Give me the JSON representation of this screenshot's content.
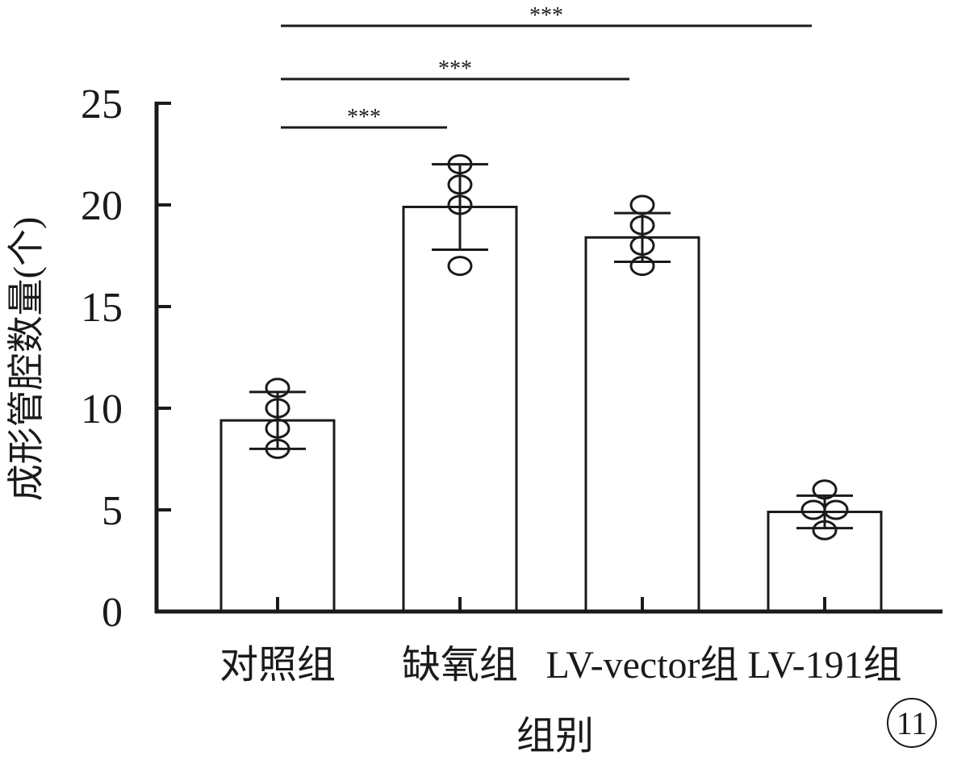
{
  "chart_data": {
    "type": "bar",
    "categories": [
      "对照组",
      "缺氧组",
      "LV-vector组",
      "LV-191组"
    ],
    "values": [
      9.4,
      19.9,
      18.4,
      4.9
    ],
    "errors": [
      1.4,
      2.1,
      1.2,
      0.8
    ],
    "points": [
      [
        11.0,
        10.0,
        9.0,
        8.0
      ],
      [
        22.0,
        21.0,
        20.0,
        17.0
      ],
      [
        20.0,
        19.0,
        18.0,
        17.0
      ],
      [
        6.0,
        5.0,
        5.0,
        4.0
      ]
    ],
    "xlabel": "组别",
    "ylabel": "成形管腔数量(个)",
    "ylim": [
      0,
      25
    ],
    "yticks": [
      "0",
      "5",
      "10",
      "15",
      "20",
      "25"
    ],
    "significance": [
      {
        "from": 0,
        "to": 1,
        "label": "***"
      },
      {
        "from": 0,
        "to": 2,
        "label": "***"
      },
      {
        "from": 0,
        "to": 3,
        "label": "***"
      }
    ],
    "grid": false,
    "bar_fill": "#ffffff",
    "line_color": "#1a1a1a"
  },
  "figure_label": "11"
}
